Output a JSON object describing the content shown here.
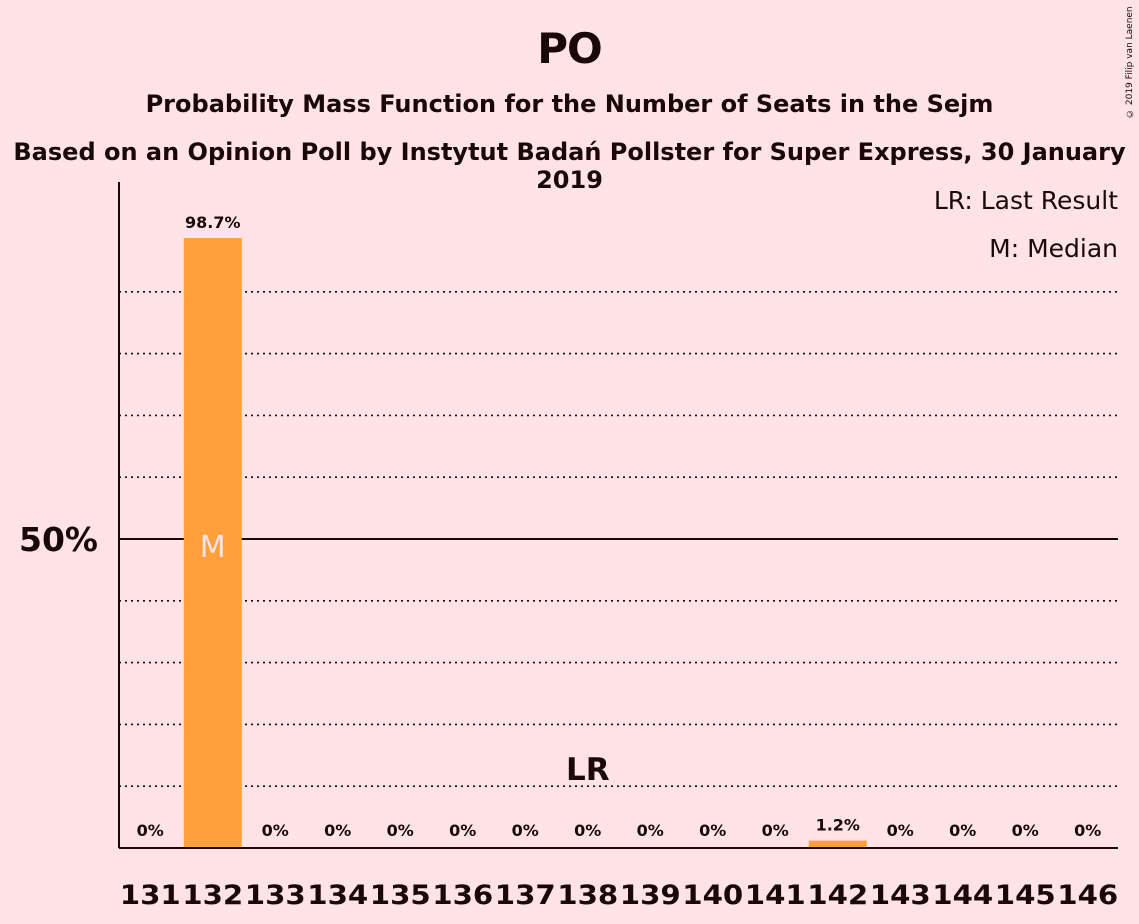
{
  "title": "PO",
  "subtitle": "Probability Mass Function for the Number of Seats in the Sejm",
  "subtitle2": "Based on an Opinion Poll by Instytut Badań Pollster for Super Express, 30 January 2019",
  "copyright": "© 2019 Filip van Laenen",
  "legend": {
    "last_result": "LR: Last Result",
    "median": "M: Median"
  },
  "colors": {
    "background": "#FFE3E6",
    "bar": "#FFA03A",
    "text": "#1a0808",
    "median_marker": "#FFE3E6"
  },
  "chart_data": {
    "type": "bar",
    "title": "PO",
    "categories": [
      "131",
      "132",
      "133",
      "134",
      "135",
      "136",
      "137",
      "138",
      "139",
      "140",
      "141",
      "142",
      "143",
      "144",
      "145",
      "146"
    ],
    "values": [
      0,
      98.7,
      0,
      0,
      0,
      0,
      0,
      0,
      0,
      0,
      0,
      1.2,
      0,
      0,
      0,
      0
    ],
    "value_labels": [
      "0%",
      "98.7%",
      "0%",
      "0%",
      "0%",
      "0%",
      "0%",
      "0%",
      "0%",
      "0%",
      "0%",
      "1.2%",
      "0%",
      "0%",
      "0%",
      "0%"
    ],
    "ylim": [
      0,
      100
    ],
    "y_tick_label": "50%",
    "y_tick_value": 50,
    "gridlines": [
      10,
      20,
      30,
      40,
      60,
      70,
      80,
      90
    ],
    "median_category": "132",
    "median_label": "M",
    "last_result_category": "138",
    "last_result_label": "LR",
    "legend_position": "top-right"
  }
}
